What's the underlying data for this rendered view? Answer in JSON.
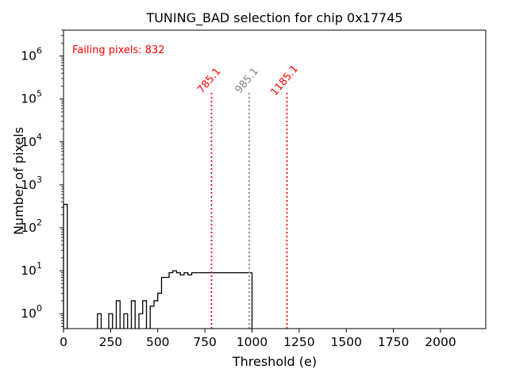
{
  "chart_data": {
    "type": "histogram",
    "title": "TUNING_BAD selection for chip 0x17745",
    "xlabel": "Threshold (e)",
    "ylabel": "Number of pixels",
    "xlim": [
      0,
      2240
    ],
    "ylim": [
      0.45,
      4000000
    ],
    "yscale": "log",
    "x_ticks": [
      0,
      250,
      500,
      750,
      1000,
      1250,
      1500,
      1750,
      2000
    ],
    "x_tick_labels": [
      "0",
      "250",
      "500",
      "750",
      "1000",
      "1250",
      "1500",
      "1750",
      "2000"
    ],
    "y_ticks": [
      {
        "value": 1,
        "base": "10",
        "exp": "0"
      },
      {
        "value": 10,
        "base": "10",
        "exp": "1"
      },
      {
        "value": 100,
        "base": "10",
        "exp": "2"
      },
      {
        "value": 1000,
        "base": "10",
        "exp": "3"
      },
      {
        "value": 10000,
        "base": "10",
        "exp": "4"
      },
      {
        "value": 100000,
        "base": "10",
        "exp": "5"
      },
      {
        "value": 1000000,
        "base": "10",
        "exp": "6"
      }
    ],
    "bin_width": 20,
    "bins": [
      [
        0,
        350
      ],
      [
        180,
        1
      ],
      [
        240,
        1
      ],
      [
        280,
        2
      ],
      [
        320,
        1
      ],
      [
        360,
        2
      ],
      [
        400,
        1
      ],
      [
        420,
        2
      ],
      [
        460,
        1.5
      ],
      [
        480,
        2
      ],
      [
        500,
        3
      ],
      [
        520,
        7
      ],
      [
        540,
        7
      ],
      [
        560,
        9
      ],
      [
        580,
        10
      ],
      [
        600,
        9
      ],
      [
        620,
        8
      ],
      [
        640,
        9
      ],
      [
        660,
        8
      ],
      [
        680,
        9
      ],
      [
        700,
        9
      ],
      [
        720,
        9
      ],
      [
        740,
        9
      ],
      [
        760,
        9
      ],
      [
        780,
        9
      ],
      [
        800,
        9
      ],
      [
        820,
        9
      ],
      [
        840,
        9
      ],
      [
        860,
        9
      ],
      [
        880,
        9
      ],
      [
        900,
        9
      ],
      [
        920,
        9
      ],
      [
        940,
        9
      ],
      [
        960,
        9
      ],
      [
        980,
        9
      ]
    ],
    "vlines": [
      {
        "x": 785.1,
        "label": "785.1",
        "color": "#ff0000"
      },
      {
        "x": 985.1,
        "label": "985.1",
        "color": "#808080"
      },
      {
        "x": 1185.1,
        "label": "1185.1",
        "color": "#ff0000"
      }
    ],
    "annotation": {
      "text": "Failing pixels: 832",
      "color": "#ff0000"
    },
    "colors": {
      "histogram": "#000000",
      "frame": "#000000",
      "background": "#ffffff"
    }
  }
}
